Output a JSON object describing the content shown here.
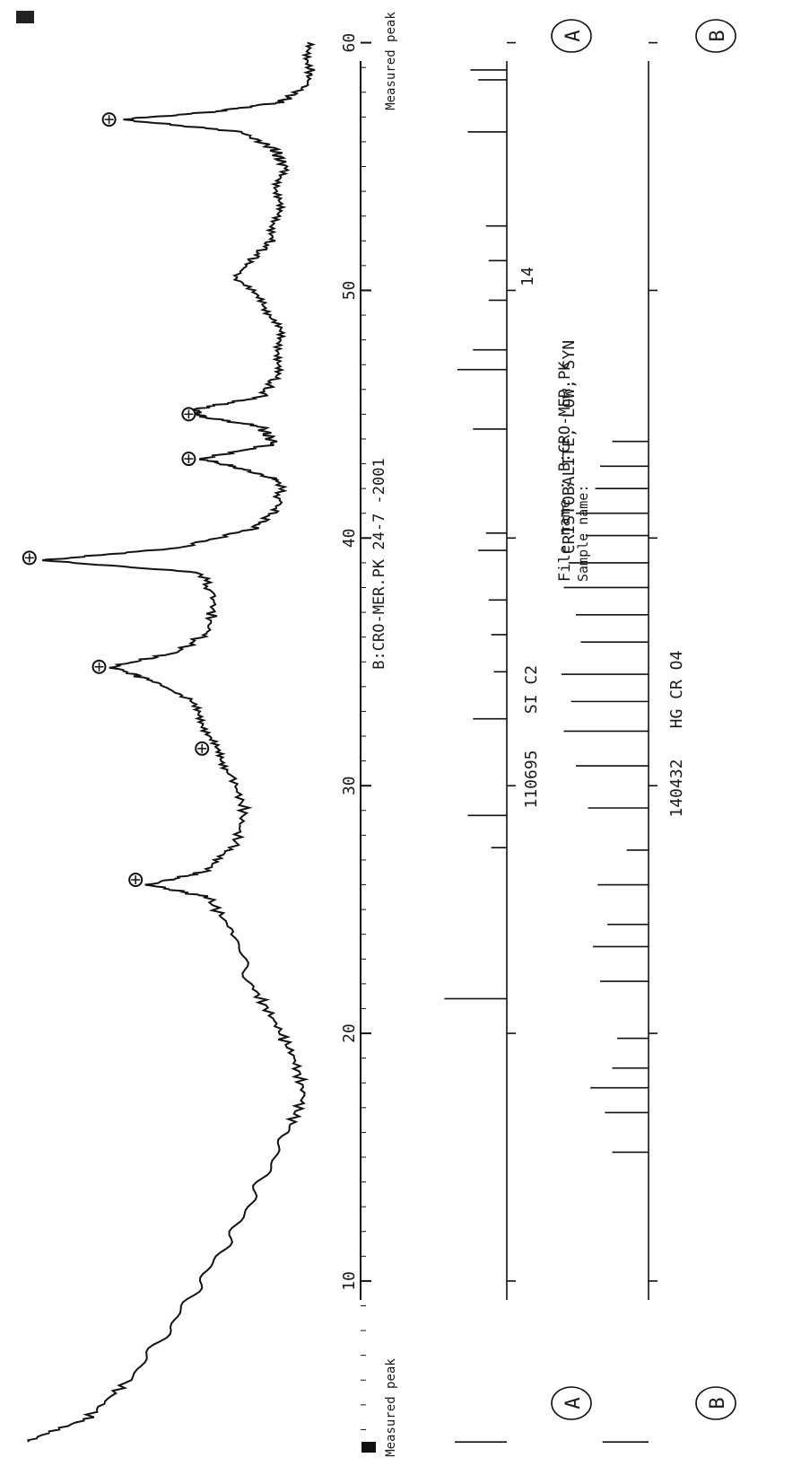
{
  "header": {
    "file_line": "File name : B:CRO-MER.PK",
    "sample_line": "Sample name:",
    "measured_peak_top": "Measured peak",
    "measured_peak_bottom": "Measured peak"
  },
  "markers": {
    "a_top": "A",
    "b_top": "B",
    "a_bottom": "A",
    "b_bottom": "B"
  },
  "reference_cards": {
    "cristobalite_id": "14",
    "cristobalite_name": "CRISTOBALITE, LOW, SYN",
    "card_a_id": "110695",
    "card_a_formula": "SI C2",
    "card_b_id": "140432",
    "card_b_formula": "HG CR O4"
  },
  "chart_data": {
    "type": "line",
    "title": "B:CRO-MER.PK 24-7 -2001",
    "xlabel": "",
    "ylabel": "",
    "xlim": [
      3,
      61
    ],
    "xticks": [
      10,
      20,
      30,
      40,
      50,
      60
    ],
    "xtick_labels": [
      "10",
      "20",
      "30",
      "40",
      "50",
      "60"
    ],
    "series": [
      {
        "x": [
          3.5,
          4.5,
          6,
          8,
          10,
          12,
          14,
          16,
          17.5,
          19,
          20.5,
          22,
          24,
          25.5,
          26,
          26.5,
          27.5,
          29,
          30.5,
          31.5,
          32.5,
          33.5,
          34.2,
          34.8,
          35.4,
          36.2,
          37.5,
          38.6,
          39.1,
          39.6,
          40.4,
          41.2,
          42.3,
          42.8,
          43.2,
          43.8,
          44.5,
          44.9,
          45.2,
          45.7,
          46.5,
          47.5,
          48.5,
          49.5,
          50.5,
          51.2,
          52,
          53,
          54,
          55,
          55.7,
          56.4,
          56.9,
          57.2,
          57.6,
          58.3,
          59,
          60
        ],
        "y": [
          100,
          82,
          70,
          58,
          48,
          38,
          30,
          22,
          17,
          20,
          26,
          33,
          38,
          46,
          64,
          48,
          38,
          35,
          39,
          44,
          47,
          52,
          62,
          75,
          55,
          46,
          44,
          48,
          96,
          55,
          32,
          25,
          24,
          36,
          48,
          26,
          30,
          48,
          50,
          30,
          26,
          24,
          25,
          29,
          38,
          33,
          27,
          25,
          25,
          23,
          26,
          36,
          72,
          45,
          24,
          16,
          15,
          16
        ]
      }
    ],
    "peak_markers_x": [
      26.2,
      31.5,
      34.8,
      39.2,
      43.2,
      45.0,
      56.9
    ],
    "reference_patterns": [
      {
        "id": "110695",
        "name": "SI C2",
        "lines": [
          {
            "x": 3.5,
            "i": 40
          },
          {
            "x": 21.4,
            "i": 48
          },
          {
            "x": 27.5,
            "i": 12
          },
          {
            "x": 28.8,
            "i": 30
          },
          {
            "x": 32.7,
            "i": 26
          },
          {
            "x": 34.6,
            "i": 10
          },
          {
            "x": 36.1,
            "i": 12
          },
          {
            "x": 37.5,
            "i": 14
          },
          {
            "x": 39.5,
            "i": 22
          },
          {
            "x": 40.2,
            "i": 16
          },
          {
            "x": 44.4,
            "i": 26
          },
          {
            "x": 46.8,
            "i": 38
          },
          {
            "x": 47.6,
            "i": 26
          },
          {
            "x": 49.6,
            "i": 14
          },
          {
            "x": 51.2,
            "i": 14
          },
          {
            "x": 52.6,
            "i": 16
          },
          {
            "x": 56.4,
            "i": 30
          },
          {
            "x": 58.5,
            "i": 22
          },
          {
            "x": 58.9,
            "i": 28
          }
        ]
      },
      {
        "id": "140432",
        "name": "HG CR O4",
        "lines": [
          {
            "x": 3.5,
            "i": 38
          },
          {
            "x": 15.2,
            "i": 30
          },
          {
            "x": 16.8,
            "i": 36
          },
          {
            "x": 17.8,
            "i": 48
          },
          {
            "x": 18.6,
            "i": 30
          },
          {
            "x": 19.8,
            "i": 26
          },
          {
            "x": 22.1,
            "i": 40
          },
          {
            "x": 23.5,
            "i": 46
          },
          {
            "x": 24.4,
            "i": 34
          },
          {
            "x": 26.0,
            "i": 42
          },
          {
            "x": 27.4,
            "i": 18
          },
          {
            "x": 29.1,
            "i": 50
          },
          {
            "x": 30.8,
            "i": 60
          },
          {
            "x": 32.2,
            "i": 70
          },
          {
            "x": 33.4,
            "i": 64
          },
          {
            "x": 34.5,
            "i": 72
          },
          {
            "x": 35.8,
            "i": 56
          },
          {
            "x": 36.9,
            "i": 60
          },
          {
            "x": 38.0,
            "i": 70
          },
          {
            "x": 39.0,
            "i": 66
          },
          {
            "x": 40.1,
            "i": 52
          },
          {
            "x": 41.0,
            "i": 60
          },
          {
            "x": 42.0,
            "i": 44
          },
          {
            "x": 42.9,
            "i": 40
          },
          {
            "x": 43.9,
            "i": 30
          }
        ]
      }
    ]
  }
}
